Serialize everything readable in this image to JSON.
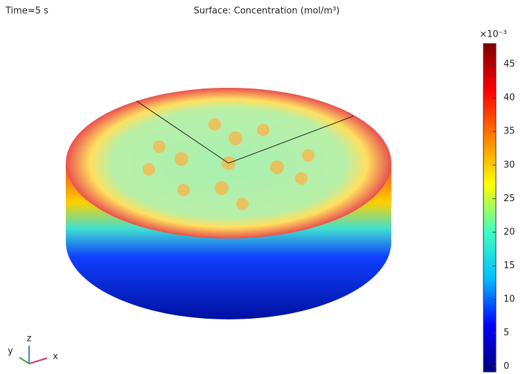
{
  "chart_data": {
    "type": "surface",
    "label": "Time=5 s",
    "title": "Surface: Concentration (mol/m³)",
    "colorbar_multiplier": "×10⁻³",
    "clim": [
      -0.8,
      48.1
    ],
    "cticks": [
      0,
      5,
      10,
      15,
      20,
      25,
      30,
      35,
      40,
      45
    ],
    "colormap": [
      "#00007f",
      "#0000ff",
      "#00bfff",
      "#40ffbf",
      "#ffff00",
      "#ff8000",
      "#ff0000",
      "#7f0000"
    ],
    "triad": {
      "x": "x",
      "y": "y",
      "z": "z"
    }
  }
}
